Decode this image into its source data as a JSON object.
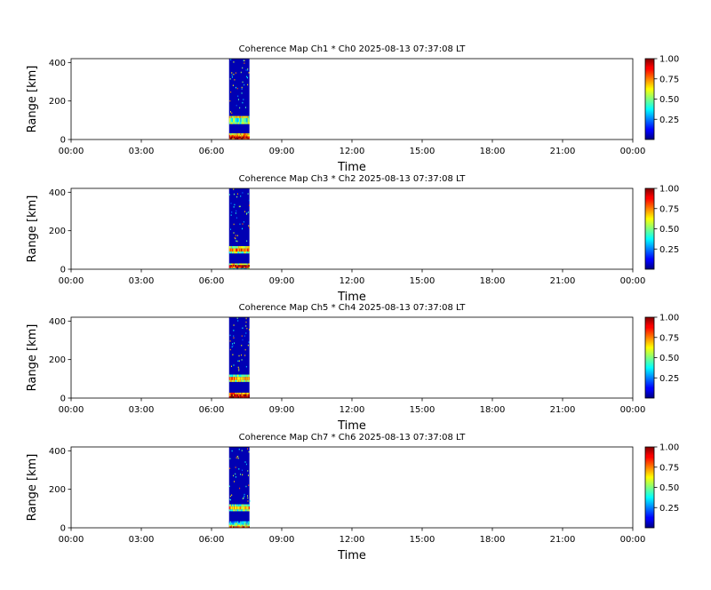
{
  "chart_data": [
    {
      "type": "heatmap",
      "title": "Coherence Map Ch1 * Ch0 2025-08-13 07:37:08 LT",
      "xlabel": "Time",
      "ylabel": "Range [km]",
      "x_ticks": [
        "00:00",
        "03:00",
        "06:00",
        "09:00",
        "12:00",
        "15:00",
        "18:00",
        "21:00",
        "00:00"
      ],
      "y_ticks": [
        0,
        200,
        400
      ],
      "ylim": [
        0,
        420
      ],
      "xlim_hours": [
        0,
        24
      ],
      "colorbar": {
        "ticks": [
          "0.25",
          "0.50",
          "0.75",
          "1.00"
        ],
        "range": [
          0,
          1
        ],
        "colormap": "jet"
      },
      "data_block": {
        "start_hour": 6.75,
        "end_hour": 7.62,
        "background_value": 0.05
      },
      "bands": [
        {
          "range_km": [
            0,
            8
          ],
          "value": 0.9
        },
        {
          "range_km": [
            8,
            16
          ],
          "value": 0.95
        },
        {
          "range_km": [
            16,
            24
          ],
          "value": 0.75
        },
        {
          "range_km": [
            24,
            32
          ],
          "value": 0.65
        },
        {
          "range_km": [
            80,
            90
          ],
          "value": 0.55
        },
        {
          "range_km": [
            90,
            112
          ],
          "value": 0.45
        },
        {
          "range_km": [
            112,
            122
          ],
          "value": 0.6
        }
      ]
    },
    {
      "type": "heatmap",
      "title": "Coherence Map Ch3 * Ch2 2025-08-13 07:37:08 LT",
      "xlabel": "Time",
      "ylabel": "Range [km]",
      "x_ticks": [
        "00:00",
        "03:00",
        "06:00",
        "09:00",
        "12:00",
        "15:00",
        "18:00",
        "21:00",
        "00:00"
      ],
      "y_ticks": [
        0,
        200,
        400
      ],
      "ylim": [
        0,
        420
      ],
      "xlim_hours": [
        0,
        24
      ],
      "colorbar": {
        "ticks": [
          "0.25",
          "0.50",
          "0.75",
          "1.00"
        ],
        "range": [
          0,
          1
        ],
        "colormap": "jet"
      },
      "data_block": {
        "start_hour": 6.75,
        "end_hour": 7.62,
        "background_value": 0.05
      },
      "bands": [
        {
          "range_km": [
            0,
            6
          ],
          "value": 0.4
        },
        {
          "range_km": [
            6,
            14
          ],
          "value": 0.85
        },
        {
          "range_km": [
            14,
            22
          ],
          "value": 0.95
        },
        {
          "range_km": [
            22,
            30
          ],
          "value": 0.6
        },
        {
          "range_km": [
            82,
            92
          ],
          "value": 0.5
        },
        {
          "range_km": [
            92,
            108
          ],
          "value": 0.8
        },
        {
          "range_km": [
            108,
            120
          ],
          "value": 0.55
        }
      ]
    },
    {
      "type": "heatmap",
      "title": "Coherence Map Ch5 * Ch4 2025-08-13 07:37:08 LT",
      "xlabel": "Time",
      "ylabel": "Range [km]",
      "x_ticks": [
        "00:00",
        "03:00",
        "06:00",
        "09:00",
        "12:00",
        "15:00",
        "18:00",
        "21:00",
        "00:00"
      ],
      "y_ticks": [
        0,
        200,
        400
      ],
      "ylim": [
        0,
        420
      ],
      "xlim_hours": [
        0,
        24
      ],
      "colorbar": {
        "ticks": [
          "0.25",
          "0.50",
          "0.75",
          "1.00"
        ],
        "range": [
          0,
          1
        ],
        "colormap": "jet"
      },
      "data_block": {
        "start_hour": 6.75,
        "end_hour": 7.62,
        "background_value": 0.05
      },
      "bands": [
        {
          "range_km": [
            0,
            10
          ],
          "value": 0.95
        },
        {
          "range_km": [
            10,
            20
          ],
          "value": 0.85
        },
        {
          "range_km": [
            20,
            28
          ],
          "value": 0.7
        },
        {
          "range_km": [
            84,
            94
          ],
          "value": 0.55
        },
        {
          "range_km": [
            94,
            110
          ],
          "value": 0.72
        },
        {
          "range_km": [
            110,
            122
          ],
          "value": 0.5
        }
      ]
    },
    {
      "type": "heatmap",
      "title": "Coherence Map Ch7 * Ch6 2025-08-13 07:37:08 LT",
      "xlabel": "Time",
      "ylabel": "Range [km]",
      "x_ticks": [
        "00:00",
        "03:00",
        "06:00",
        "09:00",
        "12:00",
        "15:00",
        "18:00",
        "21:00",
        "00:00"
      ],
      "y_ticks": [
        0,
        200,
        400
      ],
      "ylim": [
        0,
        420
      ],
      "xlim_hours": [
        0,
        24
      ],
      "colorbar": {
        "ticks": [
          "0.25",
          "0.50",
          "0.75",
          "1.00"
        ],
        "range": [
          0,
          1
        ],
        "colormap": "jet"
      },
      "data_block": {
        "start_hour": 6.75,
        "end_hour": 7.62,
        "background_value": 0.05
      },
      "bands": [
        {
          "range_km": [
            0,
            8
          ],
          "value": 0.8
        },
        {
          "range_km": [
            8,
            16
          ],
          "value": 0.6
        },
        {
          "range_km": [
            16,
            26
          ],
          "value": 0.4
        },
        {
          "range_km": [
            26,
            34
          ],
          "value": 0.3
        },
        {
          "range_km": [
            86,
            96
          ],
          "value": 0.5
        },
        {
          "range_km": [
            96,
            112
          ],
          "value": 0.68
        },
        {
          "range_km": [
            112,
            122
          ],
          "value": 0.45
        }
      ]
    }
  ]
}
